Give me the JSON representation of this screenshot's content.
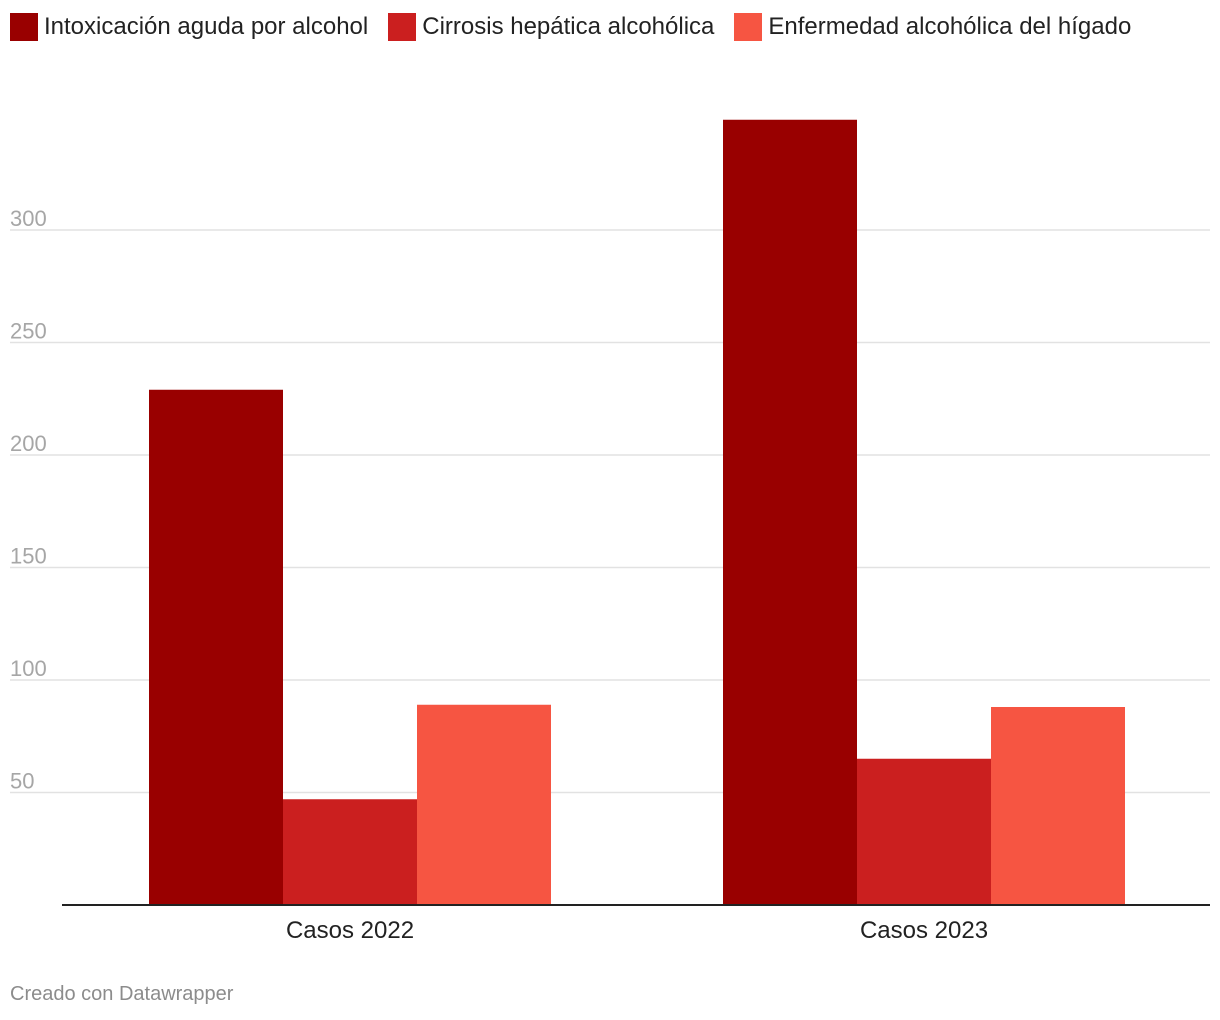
{
  "chart_data": {
    "type": "bar",
    "categories": [
      "Casos 2022",
      "Casos 2023"
    ],
    "series": [
      {
        "name": "Intoxicación aguda por alcohol",
        "values": [
          229,
          349
        ],
        "color": "#990000"
      },
      {
        "name": "Cirrosis hepática alcohólica",
        "values": [
          47,
          65
        ],
        "color": "#cb1f1f"
      },
      {
        "name": "Enfermedad alcohólica del hígado",
        "values": [
          89,
          88
        ],
        "color": "#f65542"
      }
    ],
    "y_ticks": [
      50,
      100,
      150,
      200,
      250,
      300
    ],
    "ylim": [
      0,
      360
    ],
    "grid": true,
    "legend_position": "top-left",
    "title": "",
    "xlabel": "",
    "ylabel": ""
  },
  "footer": {
    "credit": "Creado con Datawrapper"
  }
}
